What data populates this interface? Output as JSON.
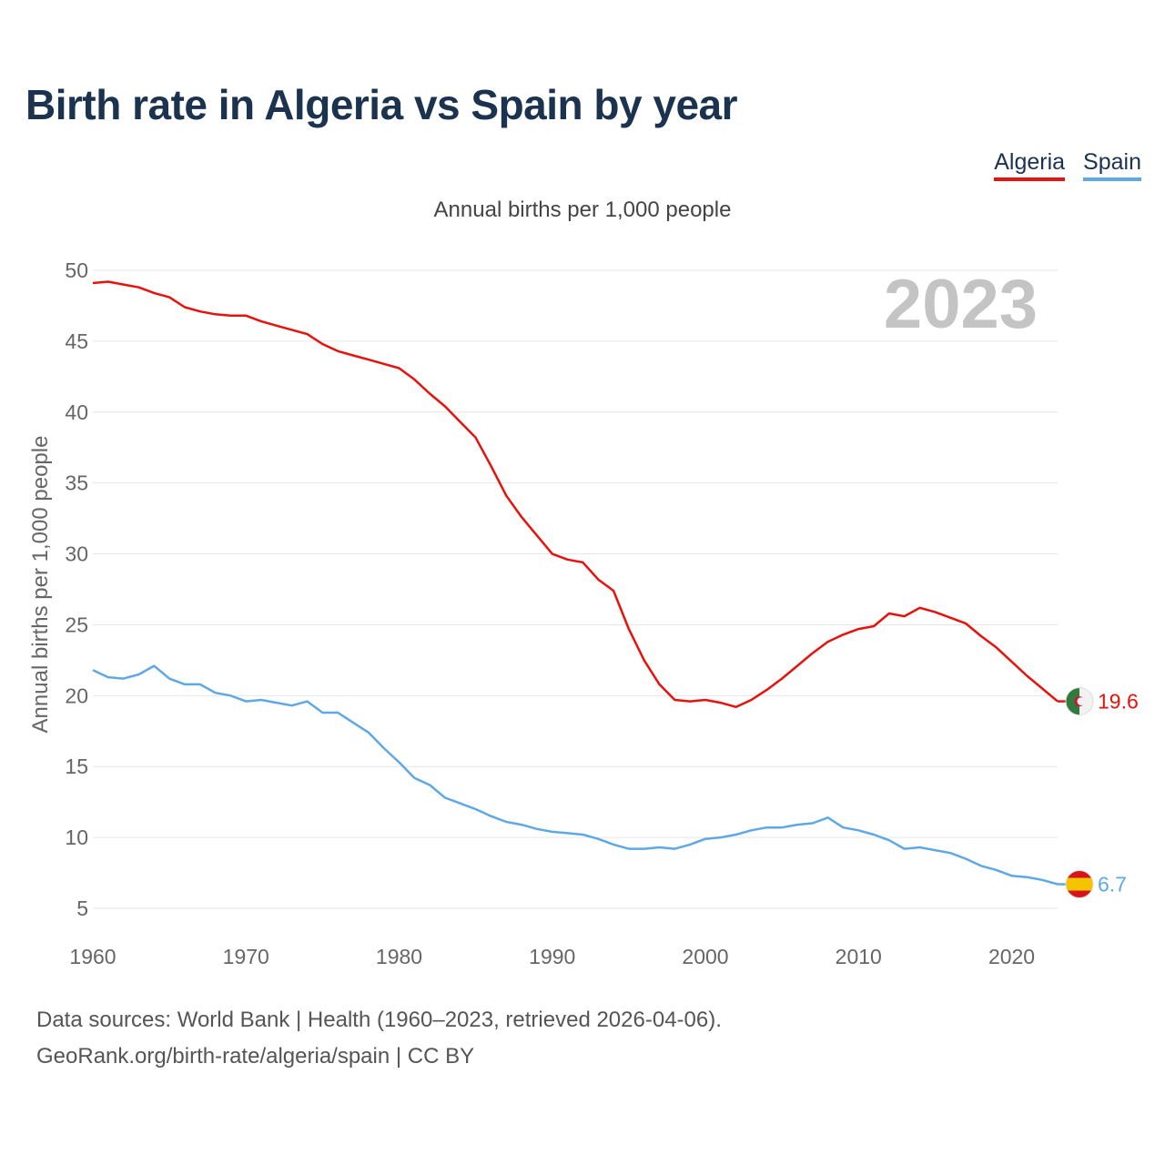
{
  "header": {
    "title": "Birth rate in Algeria vs Spain by year",
    "subtitle": "Annual births per 1,000 people"
  },
  "legend": [
    {
      "label": "Algeria",
      "color": "#e8120c"
    },
    {
      "label": "Spain",
      "color": "#5fa8e6"
    }
  ],
  "footer": {
    "line1": "Data sources: World Bank | Health (1960–2023, retrieved 2026-04-06).",
    "line2": "GeoRank.org/birth-rate/algeria/spain | CC BY"
  },
  "chart_data": {
    "type": "line",
    "title": "Birth rate in Algeria vs Spain by year",
    "subtitle": "Annual births per 1,000 people",
    "xlabel": "",
    "ylabel": "Annual births per 1,000 people",
    "year_label": "2023",
    "xlim": [
      1960,
      2023
    ],
    "ylim": [
      5,
      50
    ],
    "yticks": [
      5,
      10,
      15,
      20,
      25,
      30,
      35,
      40,
      45,
      50
    ],
    "xticks": [
      1960,
      1970,
      1980,
      1990,
      2000,
      2010,
      2020
    ],
    "grid": true,
    "legend": "top-right",
    "x": [
      1960,
      1961,
      1962,
      1963,
      1964,
      1965,
      1966,
      1967,
      1968,
      1969,
      1970,
      1971,
      1972,
      1973,
      1974,
      1975,
      1976,
      1977,
      1978,
      1979,
      1980,
      1981,
      1982,
      1983,
      1984,
      1985,
      1986,
      1987,
      1988,
      1989,
      1990,
      1991,
      1992,
      1993,
      1994,
      1995,
      1996,
      1997,
      1998,
      1999,
      2000,
      2001,
      2002,
      2003,
      2004,
      2005,
      2006,
      2007,
      2008,
      2009,
      2010,
      2011,
      2012,
      2013,
      2014,
      2015,
      2016,
      2017,
      2018,
      2019,
      2020,
      2021,
      2022,
      2023
    ],
    "series": [
      {
        "name": "Algeria",
        "color": "#e8120c",
        "end_label": "19.6",
        "flag": "algeria-flag",
        "values": [
          49.1,
          49.2,
          49.0,
          48.8,
          48.4,
          48.1,
          47.4,
          47.1,
          46.9,
          46.8,
          46.8,
          46.4,
          46.1,
          45.8,
          45.5,
          44.8,
          44.3,
          44.0,
          43.7,
          43.4,
          43.1,
          42.3,
          41.3,
          40.4,
          39.3,
          38.2,
          36.2,
          34.1,
          32.6,
          31.3,
          30.0,
          29.6,
          29.4,
          28.2,
          27.4,
          24.7,
          22.5,
          20.8,
          19.7,
          19.6,
          19.7,
          19.5,
          19.2,
          19.7,
          20.4,
          21.2,
          22.1,
          23.0,
          23.8,
          24.3,
          24.7,
          24.9,
          25.8,
          25.6,
          26.2,
          25.9,
          25.5,
          25.1,
          24.2,
          23.4,
          22.4,
          21.4,
          20.5,
          19.6
        ]
      },
      {
        "name": "Spain",
        "color": "#5fa8e6",
        "end_label": "6.7",
        "flag": "spain-flag",
        "values": [
          21.8,
          21.3,
          21.2,
          21.5,
          22.1,
          21.2,
          20.8,
          20.8,
          20.2,
          20.0,
          19.6,
          19.7,
          19.5,
          19.3,
          19.6,
          18.8,
          18.8,
          18.1,
          17.4,
          16.3,
          15.3,
          14.2,
          13.7,
          12.8,
          12.4,
          12.0,
          11.5,
          11.1,
          10.9,
          10.6,
          10.4,
          10.3,
          10.2,
          9.9,
          9.5,
          9.2,
          9.2,
          9.3,
          9.2,
          9.5,
          9.9,
          10.0,
          10.2,
          10.5,
          10.7,
          10.7,
          10.9,
          11.0,
          11.4,
          10.7,
          10.5,
          10.2,
          9.8,
          9.2,
          9.3,
          9.1,
          8.9,
          8.5,
          8.0,
          7.7,
          7.3,
          7.2,
          7.0,
          6.7
        ]
      }
    ]
  }
}
